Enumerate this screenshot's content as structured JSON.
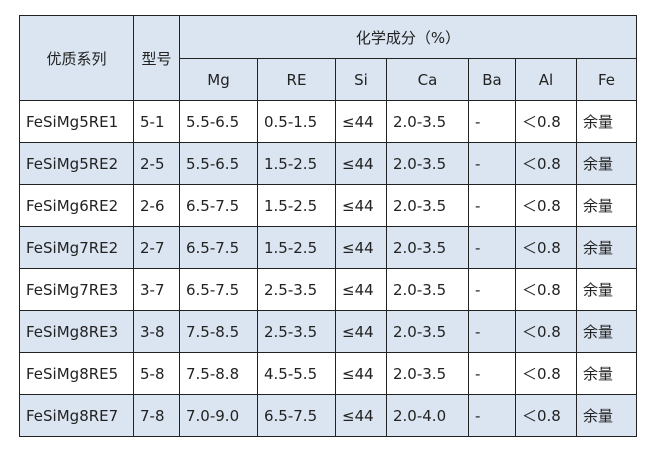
{
  "table": {
    "header": {
      "series": "优质系列",
      "model": "型号",
      "composition": "化学成分（%）",
      "elements": [
        "Mg",
        "RE",
        "Si",
        "Ca",
        "Ba",
        "Al",
        "Fe"
      ]
    },
    "rows": [
      [
        "FeSiMg5RE1",
        "5-1",
        "5.5-6.5",
        "0.5-1.5",
        "≤44",
        "2.0-3.5",
        "-",
        "＜0.8",
        "余量"
      ],
      [
        "FeSiMg5RE2",
        "2-5",
        "5.5-6.5",
        "1.5-2.5",
        "≤44",
        "2.0-3.5",
        "-",
        "＜0.8",
        "余量"
      ],
      [
        "FeSiMg6RE2",
        "2-6",
        "6.5-7.5",
        "1.5-2.5",
        "≤44",
        "2.0-3.5",
        "-",
        "＜0.8",
        "余量"
      ],
      [
        "FeSiMg7RE2",
        "2-7",
        "6.5-7.5",
        "1.5-2.5",
        "≤44",
        "2.0-3.5",
        "-",
        "＜0.8",
        "余量"
      ],
      [
        "FeSiMg7RE3",
        "3-7",
        "6.5-7.5",
        "2.5-3.5",
        "≤44",
        "2.0-3.5",
        "-",
        "＜0.8",
        "余量"
      ],
      [
        "FeSiMg8RE3",
        "3-8",
        "7.5-8.5",
        "2.5-3.5",
        "≤44",
        "2.0-3.5",
        "-",
        "＜0.8",
        "余量"
      ],
      [
        "FeSiMg8RE5",
        "5-8",
        "7.5-8.8",
        "4.5-5.5",
        "≤44",
        "2.0-3.5",
        "-",
        "＜0.8",
        "余量"
      ],
      [
        "FeSiMg8RE7",
        "7-8",
        "7.0-9.0",
        "6.5-7.5",
        "≤44",
        "2.0-4.0",
        "-",
        "＜0.8",
        "余量"
      ]
    ],
    "colors": {
      "header_bg": "#dbe5f1",
      "stripe_bg": "#dbe5f1",
      "border": "#222222"
    }
  }
}
